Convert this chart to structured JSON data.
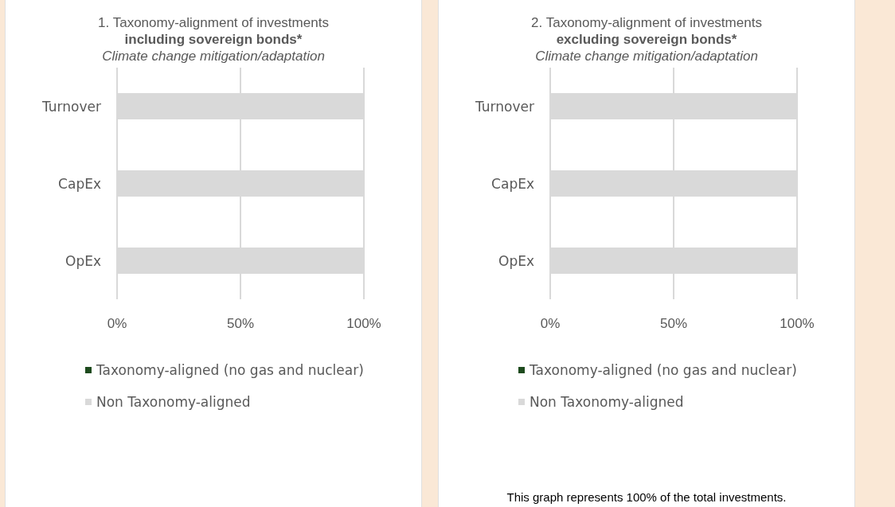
{
  "chart_data": [
    {
      "type": "bar",
      "orientation": "horizontal",
      "stacked": true,
      "title": "1. Taxonomy-alignment of investments\nincluding sovereign bonds*",
      "subtitle": "Climate change mitigation/adaptation",
      "categories": [
        "Turnover",
        "CapEx",
        "OpEx"
      ],
      "series": [
        {
          "name": "Taxonomy-aligned (no gas and nuclear)",
          "color": "#1d4a1d",
          "values": [
            0,
            0,
            0
          ]
        },
        {
          "name": "Non Taxonomy-aligned",
          "color": "#d9d9d9",
          "values": [
            100,
            100,
            100
          ]
        }
      ],
      "xlim": [
        0,
        100
      ],
      "xticks": [
        {
          "value": 0,
          "label": "0%"
        },
        {
          "value": 50,
          "label": "50%"
        },
        {
          "value": 100,
          "label": "100%"
        }
      ],
      "grid": "x",
      "legend": "bottom"
    },
    {
      "type": "bar",
      "orientation": "horizontal",
      "stacked": true,
      "title": "2. Taxonomy-alignment of investments\nexcluding sovereign bonds*",
      "subtitle": "Climate change mitigation/adaptation",
      "categories": [
        "Turnover",
        "CapEx",
        "OpEx"
      ],
      "series": [
        {
          "name": "Taxonomy-aligned (no gas and nuclear)",
          "color": "#1d4a1d",
          "values": [
            0,
            0,
            0
          ]
        },
        {
          "name": "Non Taxonomy-aligned",
          "color": "#d9d9d9",
          "values": [
            100,
            100,
            100
          ]
        }
      ],
      "xlim": [
        0,
        100
      ],
      "xticks": [
        {
          "value": 0,
          "label": "0%"
        },
        {
          "value": 50,
          "label": "50%"
        },
        {
          "value": 100,
          "label": "100%"
        }
      ],
      "grid": "x",
      "legend": "bottom",
      "annotations": [
        "This graph represents 100% of the total investments."
      ]
    }
  ]
}
